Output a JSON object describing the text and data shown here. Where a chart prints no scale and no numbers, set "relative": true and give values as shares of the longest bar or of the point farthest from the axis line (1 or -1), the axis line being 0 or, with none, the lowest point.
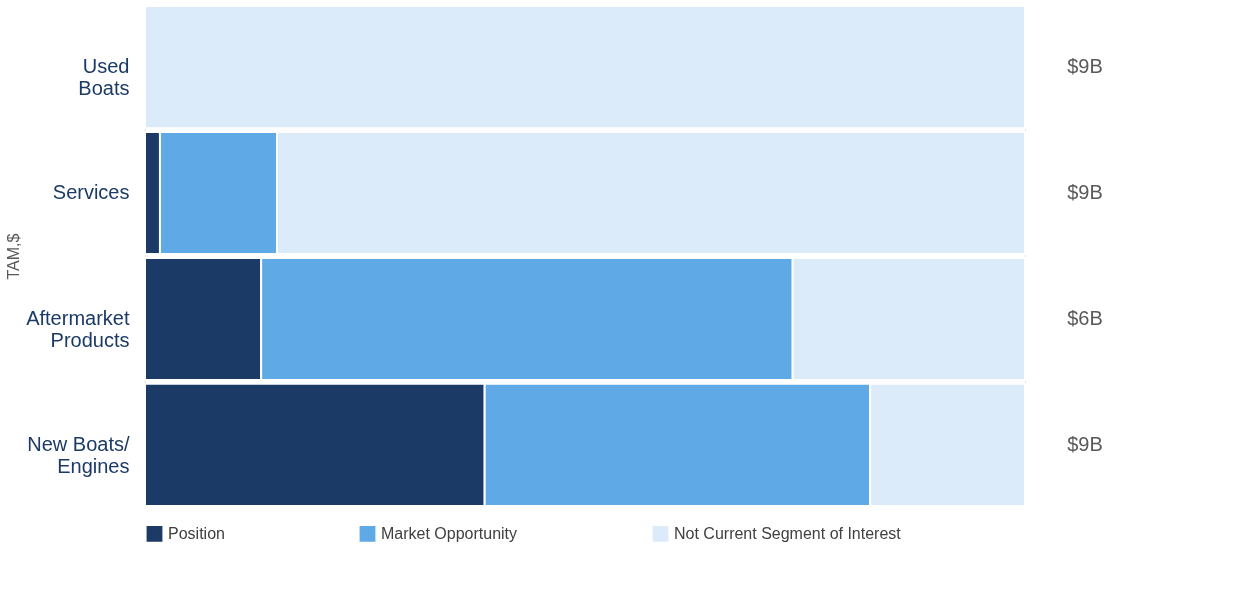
{
  "chart_data": {
    "type": "bar",
    "orientation": "horizontal",
    "stacked": true,
    "relative": true,
    "ylabel": "TAM,$",
    "categories": [
      "Used\nBoats",
      "Services",
      "Aftermarket\nProducts",
      "New Boats/\nEngines"
    ],
    "series": [
      {
        "name": "Position",
        "color": "#1b3a66",
        "values": [
          0,
          0.017,
          0.132,
          0.386
        ]
      },
      {
        "name": "Market Opportunity",
        "color": "#5ea9e6",
        "values": [
          0,
          0.133,
          0.604,
          0.438
        ]
      },
      {
        "name": "Not Current Segment of Interest",
        "color": "#dcebf9",
        "values": [
          1,
          0.85,
          0.264,
          0.176
        ]
      }
    ],
    "annotations": [
      "$9B",
      "$9B",
      "$6B",
      "$9B"
    ],
    "legend": "bottom"
  }
}
